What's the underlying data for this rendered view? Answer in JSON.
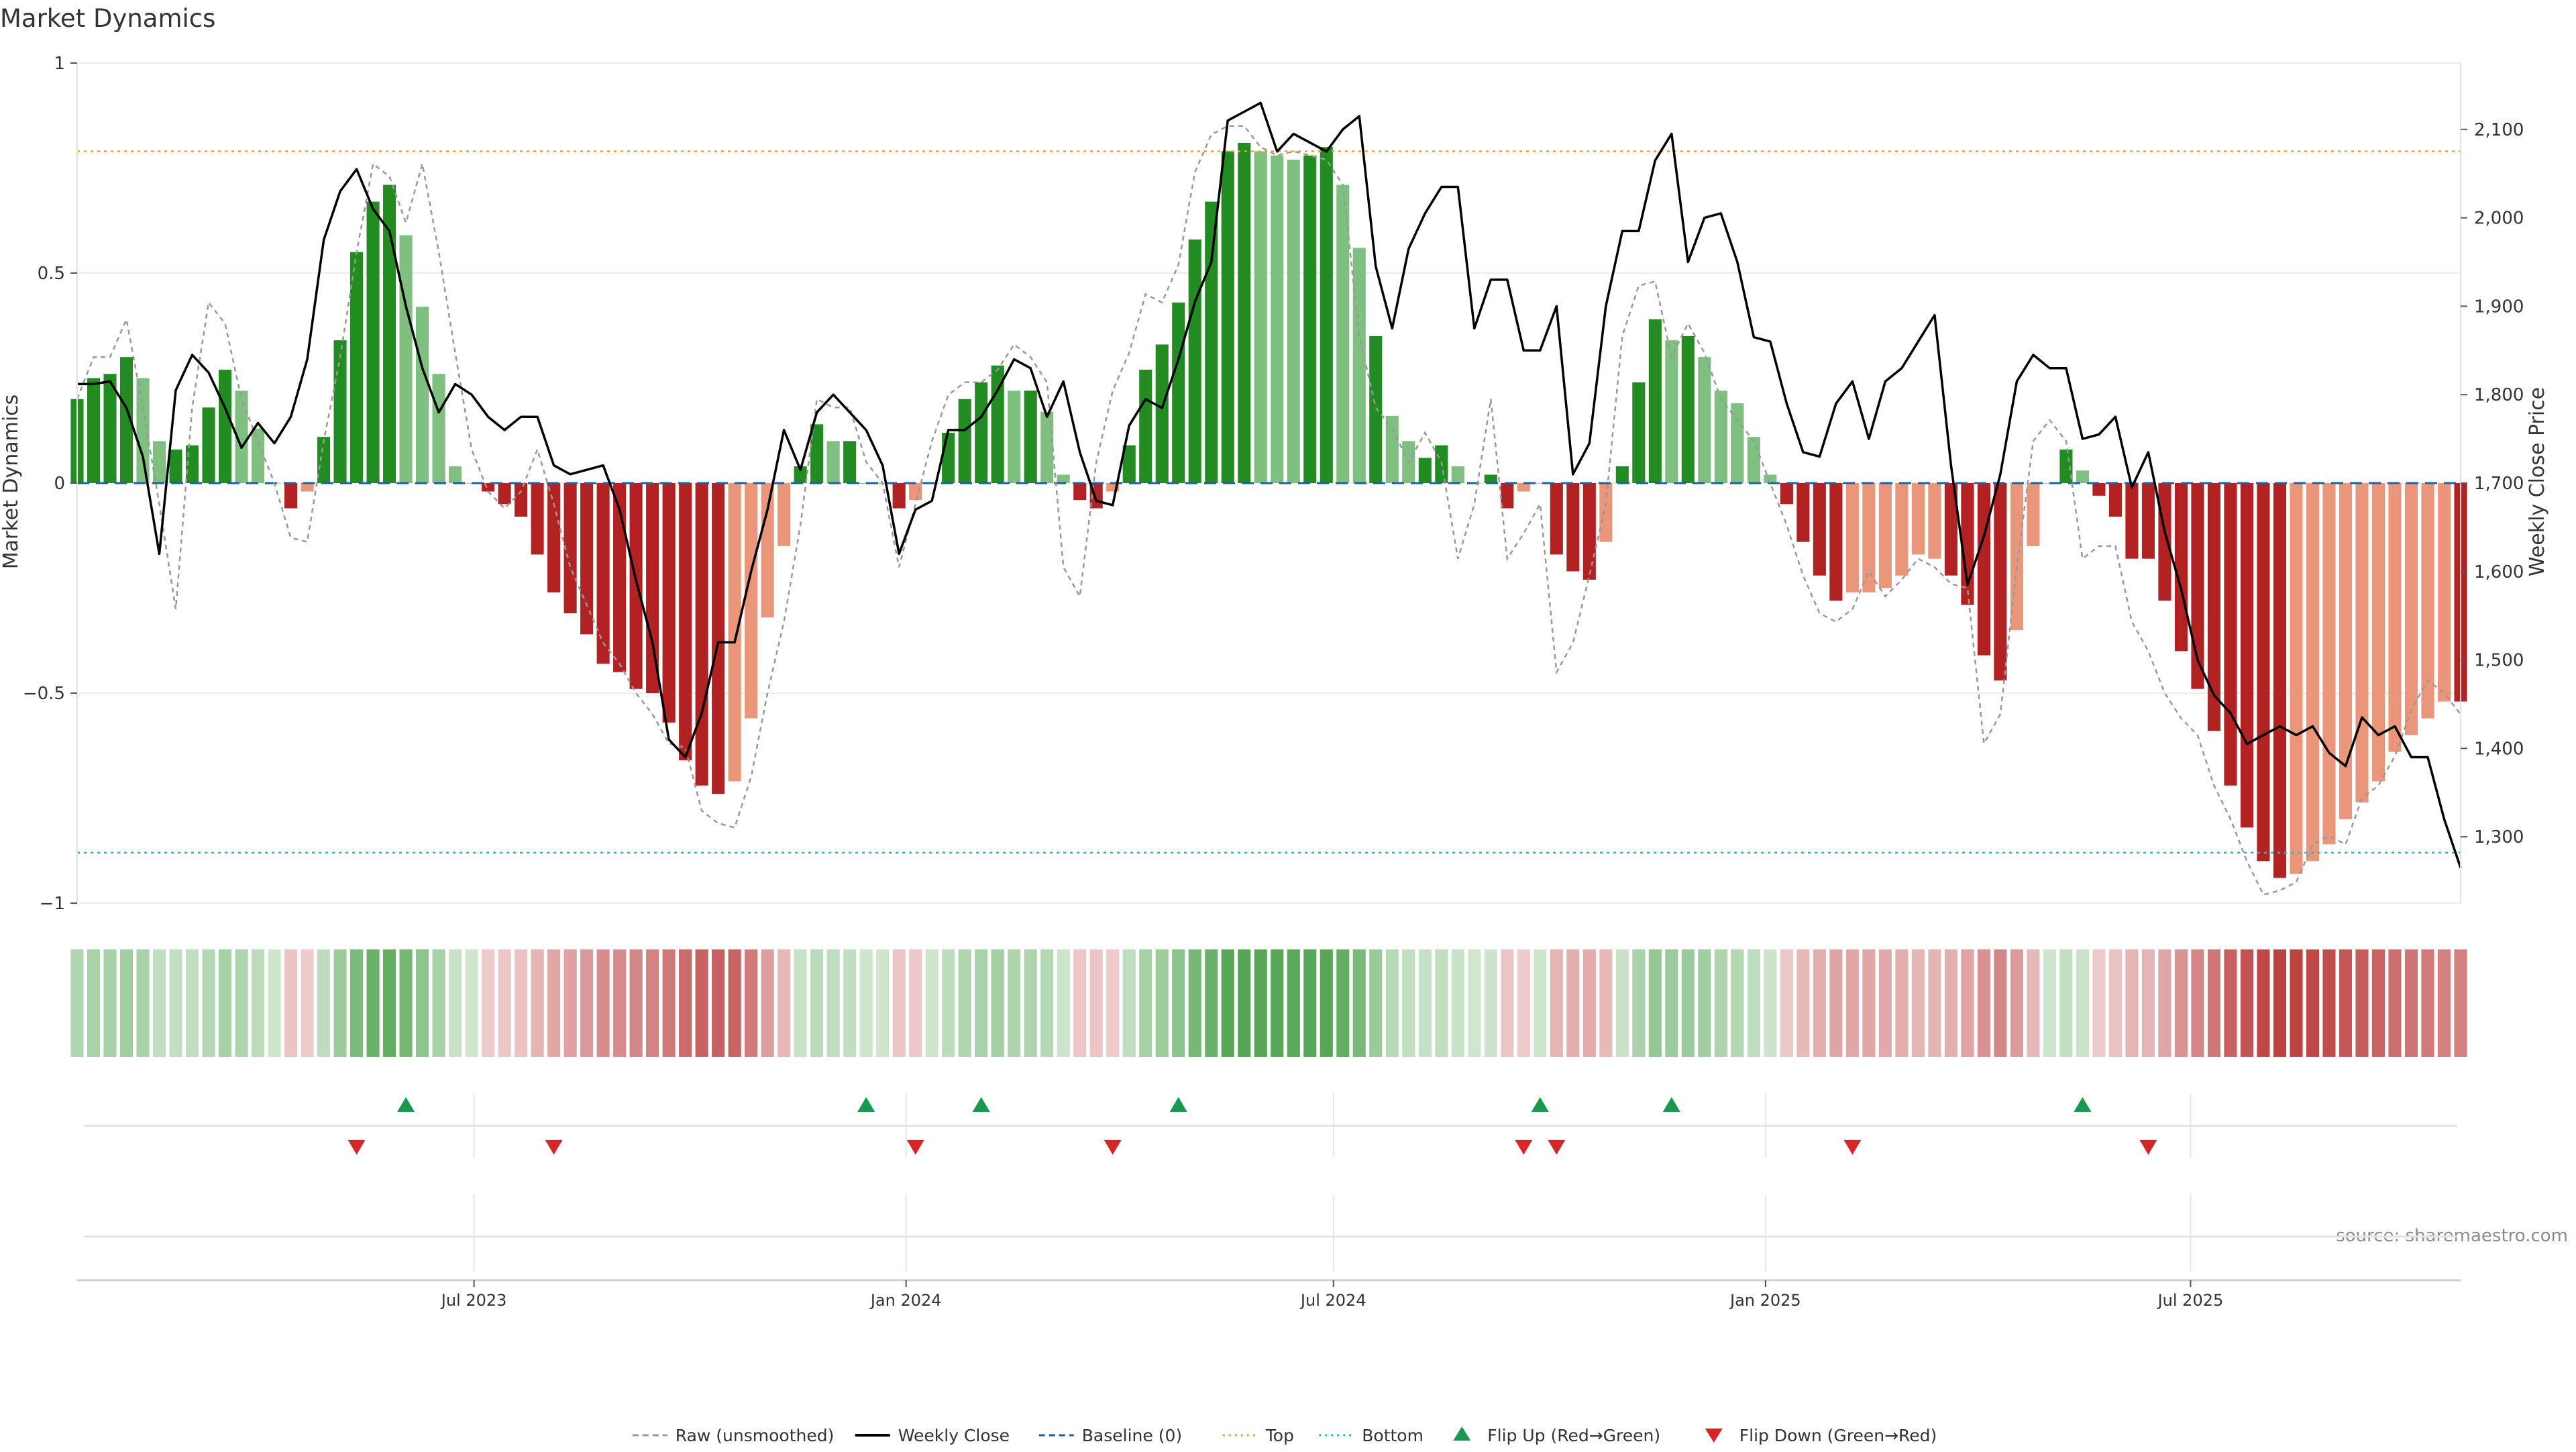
{
  "chart_data": {
    "type": "bar",
    "title": "Market Dynamics",
    "left_axis": {
      "label": "Market Dynamics",
      "ylim": [
        -1,
        1
      ],
      "ticks": [
        1,
        0.5,
        0,
        -0.5,
        -1
      ],
      "tick_labels": [
        "1",
        "0.5",
        "0",
        "−0.5",
        "−1"
      ]
    },
    "right_axis": {
      "label": "Weekly Close Price",
      "ylim": [
        1225,
        2175
      ],
      "ticks": [
        2100,
        2000,
        1900,
        1800,
        1700,
        1600,
        1500,
        1400,
        1300
      ],
      "tick_labels": [
        "2,100",
        "2,000",
        "1,900",
        "1,800",
        "1,700",
        "1,600",
        "1,500",
        "1,400",
        "1,300"
      ]
    },
    "x_axis": {
      "start": "2023-01-13",
      "end": "2025-10-24",
      "ticks": [
        "2023-07-01",
        "2024-01-01",
        "2024-07-01",
        "2025-01-01",
        "2025-07-01"
      ],
      "tick_labels": [
        "Jul 2023",
        "Jan 2024",
        "Jul 2024",
        "Jan 2025",
        "Jul 2025"
      ]
    },
    "grid": true,
    "top_level": 0.79,
    "bottom_level": -0.88,
    "colors": {
      "green_strong": "#228B22",
      "green_light": "#7FBF7F",
      "red_strong": "#B22222",
      "red_light": "#E9967A",
      "price": "#000000",
      "raw": "#999999",
      "baseline": "#1f5fa8",
      "top": "#E6A23C",
      "bottom": "#17BECF",
      "flip_up": "#1a9850",
      "flip_down": "#d62728"
    },
    "series": [
      {
        "name": "Market Dynamics",
        "kind": "bars",
        "values": [
          0.2,
          0.25,
          0.26,
          0.3,
          0.25,
          0.1,
          0.08,
          0.09,
          0.18,
          0.27,
          0.22,
          0.13,
          0.0,
          -0.06,
          -0.02,
          0.11,
          0.34,
          0.55,
          0.67,
          0.71,
          0.59,
          0.42,
          0.26,
          0.04,
          0.0,
          -0.02,
          -0.05,
          -0.08,
          -0.17,
          -0.26,
          -0.31,
          -0.36,
          -0.43,
          -0.45,
          -0.49,
          -0.5,
          -0.57,
          -0.66,
          -0.72,
          -0.74,
          -0.71,
          -0.56,
          -0.32,
          -0.15,
          0.04,
          0.14,
          0.1,
          0.1,
          0.0,
          0.0,
          -0.06,
          -0.04,
          0.0,
          0.12,
          0.2,
          0.24,
          0.28,
          0.22,
          0.22,
          0.17,
          0.02,
          -0.04,
          -0.06,
          -0.02,
          0.09,
          0.27,
          0.33,
          0.43,
          0.58,
          0.67,
          0.79,
          0.81,
          0.79,
          0.78,
          0.77,
          0.78,
          0.8,
          0.71,
          0.56,
          0.35,
          0.16,
          0.1,
          0.06,
          0.09,
          0.04,
          0.0,
          0.02,
          -0.06,
          -0.02,
          0.0,
          -0.17,
          -0.21,
          -0.23,
          -0.14,
          0.04,
          0.24,
          0.39,
          0.34,
          0.35,
          0.3,
          0.22,
          0.19,
          0.11,
          0.02,
          -0.05,
          -0.14,
          -0.22,
          -0.28,
          -0.26,
          -0.26,
          -0.25,
          -0.22,
          -0.17,
          -0.18,
          -0.22,
          -0.29,
          -0.41,
          -0.47,
          -0.35,
          -0.15,
          0.0,
          0.08,
          0.03,
          -0.03,
          -0.08,
          -0.18,
          -0.18,
          -0.28,
          -0.4,
          -0.49,
          -0.59,
          -0.72,
          -0.82,
          -0.9,
          -0.94,
          -0.93,
          -0.9,
          -0.86,
          -0.8,
          -0.76,
          -0.71,
          -0.64,
          -0.6,
          -0.56,
          -0.52,
          -0.52
        ],
        "shade": [
          "s",
          "s",
          "s",
          "s",
          "l",
          "l",
          "s",
          "s",
          "s",
          "s",
          "l",
          "l",
          "l",
          "s",
          "l",
          "s",
          "s",
          "s",
          "s",
          "s",
          "l",
          "l",
          "l",
          "l",
          "l",
          "s",
          "s",
          "s",
          "s",
          "s",
          "s",
          "s",
          "s",
          "s",
          "s",
          "s",
          "s",
          "s",
          "s",
          "s",
          "l",
          "l",
          "l",
          "l",
          "s",
          "s",
          "l",
          "s",
          "s",
          "s",
          "s",
          "l",
          "s",
          "s",
          "s",
          "s",
          "s",
          "l",
          "s",
          "l",
          "l",
          "s",
          "s",
          "l",
          "s",
          "s",
          "s",
          "s",
          "s",
          "s",
          "s",
          "s",
          "l",
          "l",
          "l",
          "s",
          "s",
          "l",
          "l",
          "s",
          "l",
          "l",
          "s",
          "s",
          "l",
          "l",
          "s",
          "s",
          "l",
          "l",
          "s",
          "s",
          "s",
          "l",
          "s",
          "s",
          "s",
          "l",
          "s",
          "l",
          "l",
          "l",
          "l",
          "l",
          "s",
          "s",
          "s",
          "s",
          "l",
          "l",
          "l",
          "l",
          "l",
          "l",
          "s",
          "s",
          "s",
          "s",
          "l",
          "l",
          "l",
          "s",
          "l",
          "s",
          "s",
          "s",
          "s",
          "s",
          "s",
          "s",
          "s",
          "s",
          "s",
          "s",
          "s",
          "l",
          "l",
          "l",
          "l",
          "l",
          "l",
          "l",
          "l",
          "l",
          "l",
          "s"
        ]
      },
      {
        "name": "Raw (unsmoothed)",
        "kind": "dashed-line",
        "values": [
          0.2,
          0.3,
          0.3,
          0.39,
          0.18,
          -0.05,
          -0.3,
          0.18,
          0.43,
          0.38,
          0.2,
          0.1,
          0.0,
          -0.13,
          -0.14,
          0.1,
          0.3,
          0.55,
          0.76,
          0.73,
          0.62,
          0.76,
          0.55,
          0.31,
          0.08,
          -0.02,
          -0.06,
          -0.02,
          0.08,
          -0.05,
          -0.2,
          -0.29,
          -0.38,
          -0.43,
          -0.5,
          -0.55,
          -0.62,
          -0.63,
          -0.78,
          -0.81,
          -0.82,
          -0.7,
          -0.5,
          -0.33,
          -0.1,
          0.2,
          0.18,
          0.18,
          0.05,
          0.0,
          -0.2,
          -0.05,
          0.1,
          0.21,
          0.24,
          0.24,
          0.27,
          0.33,
          0.3,
          0.24,
          -0.2,
          -0.27,
          0.05,
          0.22,
          0.31,
          0.45,
          0.43,
          0.52,
          0.74,
          0.83,
          0.85,
          0.85,
          0.8,
          0.78,
          0.79,
          0.78,
          0.77,
          0.71,
          0.35,
          0.18,
          0.13,
          0.05,
          0.12,
          0.05,
          -0.18,
          -0.05,
          0.2,
          -0.18,
          -0.12,
          -0.05,
          -0.45,
          -0.38,
          -0.22,
          -0.05,
          0.35,
          0.47,
          0.48,
          0.3,
          0.38,
          0.31,
          0.2,
          0.15,
          0.1,
          0.0,
          -0.1,
          -0.22,
          -0.31,
          -0.33,
          -0.3,
          -0.21,
          -0.27,
          -0.23,
          -0.18,
          -0.2,
          -0.24,
          -0.25,
          -0.62,
          -0.55,
          -0.2,
          0.1,
          0.15,
          0.1,
          -0.18,
          -0.15,
          -0.15,
          -0.33,
          -0.4,
          -0.5,
          -0.56,
          -0.6,
          -0.72,
          -0.8,
          -0.9,
          -0.98,
          -0.97,
          -0.95,
          -0.86,
          -0.84,
          -0.86,
          -0.75,
          -0.72,
          -0.65,
          -0.54,
          -0.47,
          -0.5,
          -0.55
        ]
      },
      {
        "name": "Weekly Close",
        "kind": "line",
        "axis": "right",
        "values": [
          1812,
          1812,
          1815,
          1785,
          1730,
          1620,
          1805,
          1845,
          1825,
          1785,
          1740,
          1768,
          1745,
          1775,
          1840,
          1975,
          2030,
          2055,
          2010,
          1985,
          1900,
          1830,
          1780,
          1812,
          1800,
          1775,
          1760,
          1775,
          1775,
          1720,
          1710,
          1715,
          1720,
          1670,
          1590,
          1520,
          1410,
          1390,
          1440,
          1520,
          1520,
          1600,
          1670,
          1760,
          1715,
          1780,
          1800,
          1780,
          1760,
          1720,
          1620,
          1670,
          1680,
          1760,
          1760,
          1775,
          1805,
          1840,
          1830,
          1775,
          1815,
          1735,
          1680,
          1675,
          1765,
          1795,
          1785,
          1840,
          1905,
          1950,
          2110,
          2120,
          2130,
          2075,
          2095,
          2085,
          2075,
          2100,
          2115,
          1945,
          1875,
          1965,
          2005,
          2035,
          2035,
          1875,
          1930,
          1930,
          1850,
          1850,
          1900,
          1710,
          1745,
          1900,
          1985,
          1985,
          2065,
          2095,
          1950,
          2000,
          2005,
          1950,
          1865,
          1860,
          1790,
          1735,
          1730,
          1790,
          1815,
          1750,
          1815,
          1830,
          1860,
          1890,
          1720,
          1585,
          1640,
          1710,
          1815,
          1845,
          1830,
          1830,
          1750,
          1755,
          1775,
          1695,
          1735,
          1645,
          1580,
          1500,
          1460,
          1440,
          1405,
          1415,
          1425,
          1415,
          1425,
          1395,
          1380,
          1435,
          1415,
          1425,
          1390,
          1390,
          1320,
          1265
        ]
      },
      {
        "name": "Baseline (0)",
        "kind": "dashed-line",
        "value": 0
      },
      {
        "name": "Top",
        "kind": "dotted-line",
        "value": 0.79
      },
      {
        "name": "Bottom",
        "kind": "dotted-line",
        "value": -0.88
      }
    ],
    "flip_up_dates": [
      "2023-06-02",
      "2023-12-15",
      "2024-02-02",
      "2024-04-26",
      "2024-09-27",
      "2024-11-22",
      "2025-05-16"
    ],
    "flip_down_dates": [
      "2023-05-12",
      "2023-08-04",
      "2024-01-05",
      "2024-03-29",
      "2024-09-20",
      "2024-10-04",
      "2025-02-07",
      "2025-06-13"
    ],
    "legend": {
      "placement": "bottom-center",
      "items": [
        {
          "label": "Raw (unsmoothed)",
          "symbol": "dashed",
          "color": "#999999"
        },
        {
          "label": "Weekly Close",
          "symbol": "line",
          "color": "#000000"
        },
        {
          "label": "Baseline (0)",
          "symbol": "dashed",
          "color": "#1f5fa8"
        },
        {
          "label": "Top",
          "symbol": "dotted",
          "color": "#E6A23C"
        },
        {
          "label": "Bottom",
          "symbol": "dotted",
          "color": "#17BECF"
        },
        {
          "label": "Flip Up (Red→Green)",
          "symbol": "triangle-up",
          "color": "#1a9850"
        },
        {
          "label": "Flip Down (Green→Red)",
          "symbol": "triangle-down",
          "color": "#d62728"
        }
      ]
    },
    "annotation": "source: sharemaestro.com"
  }
}
